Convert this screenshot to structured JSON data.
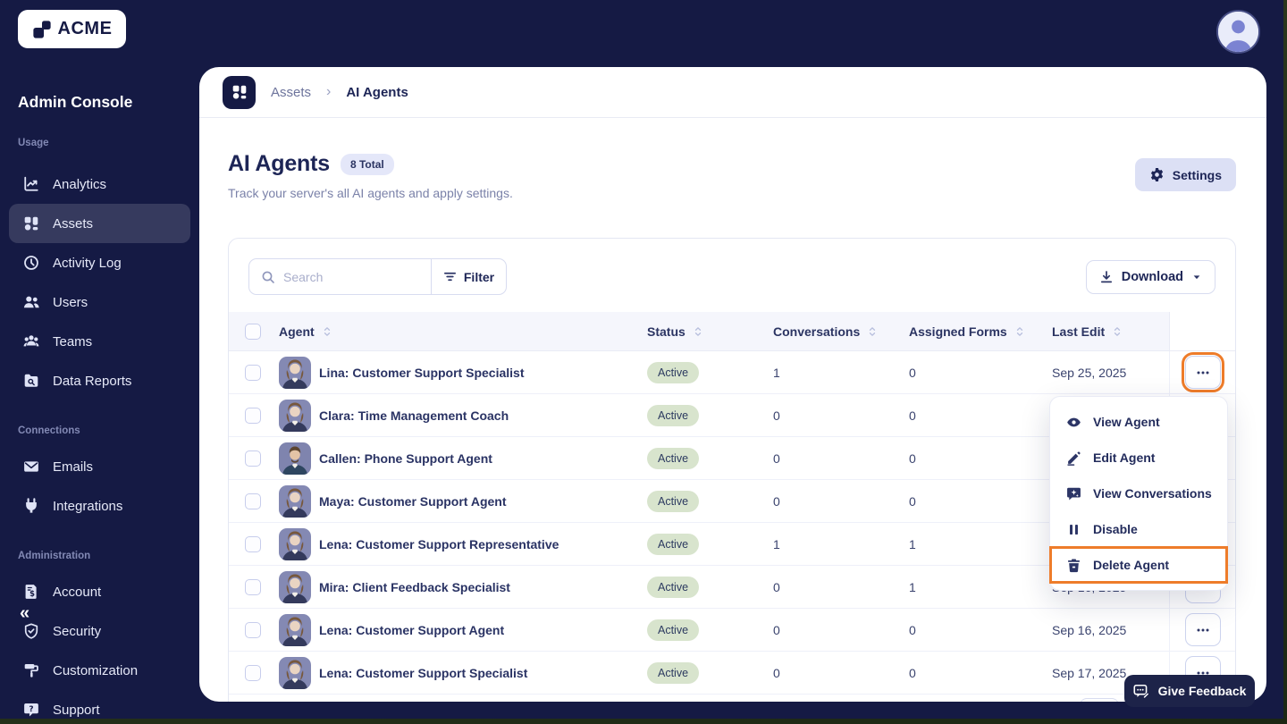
{
  "topbar": {
    "logo_text": "ACME"
  },
  "sidebar": {
    "title": "Admin Console",
    "collapse_glyph": "«",
    "sections": [
      {
        "label": "Usage",
        "items": [
          {
            "icon": "analytics",
            "label": "Analytics",
            "active": false
          },
          {
            "icon": "assets",
            "label": "Assets",
            "active": true
          },
          {
            "icon": "activity",
            "label": "Activity Log",
            "active": false
          },
          {
            "icon": "users",
            "label": "Users",
            "active": false
          },
          {
            "icon": "teams",
            "label": "Teams",
            "active": false
          },
          {
            "icon": "data-reports",
            "label": "Data Reports",
            "active": false
          }
        ]
      },
      {
        "label": "Connections",
        "items": [
          {
            "icon": "emails",
            "label": "Emails",
            "active": false
          },
          {
            "icon": "integrations",
            "label": "Integrations",
            "active": false
          }
        ]
      },
      {
        "label": "Administration",
        "items": [
          {
            "icon": "account",
            "label": "Account",
            "active": false
          },
          {
            "icon": "security",
            "label": "Security",
            "active": false
          },
          {
            "icon": "customization",
            "label": "Customization",
            "active": false
          },
          {
            "icon": "support",
            "label": "Support",
            "active": false
          }
        ]
      }
    ]
  },
  "breadcrumb": {
    "section": "Assets",
    "separator": "›",
    "page": "AI Agents"
  },
  "page": {
    "title": "AI Agents",
    "badge": "8 Total",
    "subtitle": "Track your server's all AI agents and apply settings.",
    "settings_label": "Settings"
  },
  "toolbar": {
    "search_placeholder": "Search",
    "filter_label": "Filter",
    "download_label": "Download"
  },
  "table": {
    "columns": [
      "Agent",
      "Status",
      "Conversations",
      "Assigned Forms",
      "Last Edit"
    ],
    "rows": [
      {
        "name": "Lina: Customer Support Specialist",
        "status": "Active",
        "conversations": "1",
        "forms": "0",
        "last_edit": "Sep 25, 2025",
        "male": false,
        "action_highlighted": true
      },
      {
        "name": "Clara: Time Management Coach",
        "status": "Active",
        "conversations": "0",
        "forms": "0",
        "last_edit": "",
        "male": false,
        "action_highlighted": false
      },
      {
        "name": "Callen: Phone Support Agent",
        "status": "Active",
        "conversations": "0",
        "forms": "0",
        "last_edit": "",
        "male": true,
        "action_highlighted": false
      },
      {
        "name": "Maya: Customer Support Agent",
        "status": "Active",
        "conversations": "0",
        "forms": "0",
        "last_edit": "",
        "male": false,
        "action_highlighted": false
      },
      {
        "name": "Lena: Customer Support Representative",
        "status": "Active",
        "conversations": "1",
        "forms": "1",
        "last_edit": "",
        "male": false,
        "action_highlighted": false
      },
      {
        "name": "Mira: Client Feedback Specialist",
        "status": "Active",
        "conversations": "0",
        "forms": "1",
        "last_edit": "Sep 16, 2025",
        "male": false,
        "action_highlighted": false
      },
      {
        "name": "Lena: Customer Support Agent",
        "status": "Active",
        "conversations": "0",
        "forms": "0",
        "last_edit": "Sep 16, 2025",
        "male": false,
        "action_highlighted": false
      },
      {
        "name": "Lena: Customer Support Specialist",
        "status": "Active",
        "conversations": "0",
        "forms": "0",
        "last_edit": "Sep 17, 2025",
        "male": false,
        "action_highlighted": false
      }
    ]
  },
  "context_menu": {
    "items": [
      {
        "icon": "eye",
        "label": "View Agent",
        "highlighted": false
      },
      {
        "icon": "pencil",
        "label": "Edit Agent",
        "highlighted": false
      },
      {
        "icon": "chat-sparkle",
        "label": "View Conversations",
        "highlighted": false
      },
      {
        "icon": "pause",
        "label": "Disable",
        "highlighted": false
      },
      {
        "icon": "trash",
        "label": "Delete Agent",
        "highlighted": true
      }
    ]
  },
  "feedback": {
    "label": "Give Feedback"
  },
  "colors": {
    "navy": "#151a44",
    "highlight_orange": "#ee7c2a",
    "active_badge_bg": "#d8e4cd",
    "accent_lavender": "#dce0f5"
  }
}
